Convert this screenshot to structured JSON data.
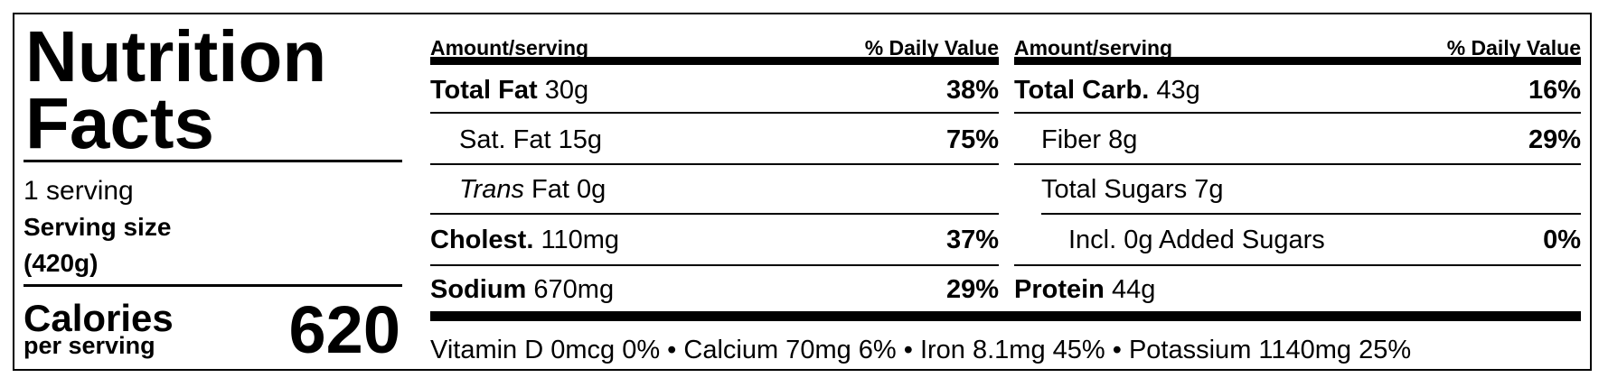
{
  "label": {
    "title_line1": "Nutrition",
    "title_line2": "Facts",
    "servings": "1 serving",
    "serving_size_label": "Serving size",
    "serving_size_value": "(420g)",
    "calories_label": "Calories",
    "calories_sub": "per serving",
    "calories_value": "620",
    "columns": [
      {
        "header_amount": "Amount/serving",
        "header_dv": "% Daily Value",
        "rows": [
          {
            "name": "Total Fat",
            "amount": "30g",
            "dv": "38%"
          },
          {
            "name": "Sat. Fat",
            "amount": "15g",
            "dv": "75%"
          },
          {
            "name_italic": "Trans",
            "name": "Fat",
            "amount": "0g"
          },
          {
            "name": "Cholest.",
            "amount": "110mg",
            "dv": "37%"
          },
          {
            "name": "Sodium",
            "amount": "670mg",
            "dv": "29%"
          }
        ]
      },
      {
        "header_amount": "Amount/serving",
        "header_dv": "% Daily Value",
        "rows": [
          {
            "name": "Total Carb.",
            "amount": "43g",
            "dv": "16%"
          },
          {
            "name": "Fiber",
            "amount": "8g",
            "dv": "29%"
          },
          {
            "name": "Total Sugars",
            "amount": "7g"
          },
          {
            "name": "Incl. 0g Added Sugars",
            "dv": "0%"
          },
          {
            "name": "Protein",
            "amount": "44g"
          }
        ]
      }
    ],
    "footer": "Vitamin D 0mcg 0% • Calcium 70mg 6% • Iron 8.1mg 45% • Potassium 1140mg 25%"
  }
}
